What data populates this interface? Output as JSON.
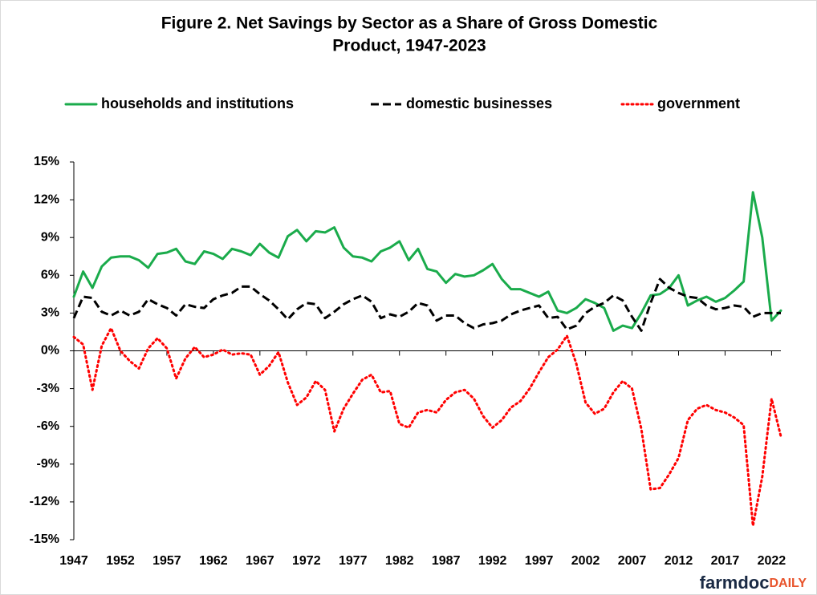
{
  "chart_data": {
    "type": "line",
    "title": [
      "Figure 2. Net Savings by Sector as a Share of Gross Domestic",
      "Product, 1947-2023"
    ],
    "x": [
      1947,
      1948,
      1949,
      1950,
      1951,
      1952,
      1953,
      1954,
      1955,
      1956,
      1957,
      1958,
      1959,
      1960,
      1961,
      1962,
      1963,
      1964,
      1965,
      1966,
      1967,
      1968,
      1969,
      1970,
      1971,
      1972,
      1973,
      1974,
      1975,
      1976,
      1977,
      1978,
      1979,
      1980,
      1981,
      1982,
      1983,
      1984,
      1985,
      1986,
      1987,
      1988,
      1989,
      1990,
      1991,
      1992,
      1993,
      1994,
      1995,
      1996,
      1997,
      1998,
      1999,
      2000,
      2001,
      2002,
      2003,
      2004,
      2005,
      2006,
      2007,
      2008,
      2009,
      2010,
      2011,
      2012,
      2013,
      2014,
      2015,
      2016,
      2017,
      2018,
      2019,
      2020,
      2021,
      2022,
      2023
    ],
    "series": [
      {
        "name": "households and institutions",
        "color": "#1aab4b",
        "dash": "solid",
        "values": [
          4.3,
          6.3,
          5.0,
          6.7,
          7.4,
          7.5,
          7.5,
          7.2,
          6.6,
          7.7,
          7.8,
          8.1,
          7.1,
          6.9,
          7.9,
          7.7,
          7.3,
          8.1,
          7.9,
          7.6,
          8.5,
          7.8,
          7.4,
          9.1,
          9.6,
          8.7,
          9.5,
          9.4,
          9.8,
          8.2,
          7.5,
          7.4,
          7.1,
          7.9,
          8.2,
          8.7,
          7.2,
          8.1,
          6.5,
          6.3,
          5.4,
          6.1,
          5.9,
          6.0,
          6.4,
          6.9,
          5.7,
          4.9,
          4.9,
          4.6,
          4.3,
          4.7,
          3.2,
          3.0,
          3.4,
          4.1,
          3.8,
          3.4,
          1.6,
          2.0,
          1.8,
          3.0,
          4.4,
          4.5,
          5.0,
          6.0,
          3.6,
          4.0,
          4.3,
          3.9,
          4.2,
          4.8,
          5.5,
          12.6,
          9.0,
          2.4,
          3.2
        ]
      },
      {
        "name": "domestic businesses",
        "color": "#000000",
        "dash": "dash",
        "values": [
          2.6,
          4.3,
          4.2,
          3.1,
          2.8,
          3.2,
          2.8,
          3.1,
          4.1,
          3.7,
          3.4,
          2.8,
          3.7,
          3.5,
          3.4,
          4.1,
          4.4,
          4.6,
          5.1,
          5.1,
          4.5,
          4.0,
          3.3,
          2.5,
          3.3,
          3.8,
          3.7,
          2.6,
          3.1,
          3.7,
          4.1,
          4.4,
          3.9,
          2.6,
          2.9,
          2.7,
          3.1,
          3.8,
          3.6,
          2.4,
          2.8,
          2.8,
          2.2,
          1.8,
          2.1,
          2.2,
          2.4,
          2.9,
          3.2,
          3.4,
          3.6,
          2.6,
          2.7,
          1.7,
          2.0,
          3.0,
          3.5,
          3.8,
          4.4,
          4.0,
          2.7,
          1.6,
          3.8,
          5.7,
          5.0,
          4.6,
          4.3,
          4.2,
          3.6,
          3.3,
          3.4,
          3.6,
          3.5,
          2.7,
          3.0,
          3.0,
          3.0
        ]
      },
      {
        "name": "government",
        "color": "#ff0000",
        "dash": "dot",
        "values": [
          1.1,
          0.5,
          -3.1,
          0.4,
          1.8,
          0.0,
          -0.8,
          -1.4,
          0.2,
          1.0,
          0.2,
          -2.2,
          -0.6,
          0.3,
          -0.5,
          -0.3,
          0.1,
          -0.3,
          -0.2,
          -0.3,
          -1.9,
          -1.2,
          -0.1,
          -2.5,
          -4.3,
          -3.7,
          -2.4,
          -3.1,
          -6.4,
          -4.6,
          -3.4,
          -2.3,
          -1.9,
          -3.3,
          -3.2,
          -5.8,
          -6.1,
          -4.9,
          -4.7,
          -4.9,
          -3.9,
          -3.3,
          -3.1,
          -3.8,
          -5.2,
          -6.1,
          -5.5,
          -4.5,
          -4.0,
          -3.0,
          -1.7,
          -0.5,
          0.1,
          1.2,
          -1.0,
          -4.1,
          -5.0,
          -4.6,
          -3.3,
          -2.4,
          -3.0,
          -6.2,
          -11.0,
          -10.9,
          -9.8,
          -8.5,
          -5.5,
          -4.6,
          -4.3,
          -4.7,
          -4.9,
          -5.3,
          -5.9,
          -13.9,
          -10.0,
          -3.8,
          -6.8
        ]
      }
    ],
    "xlim": [
      1947,
      2023
    ],
    "xticks": [
      1947,
      1952,
      1957,
      1962,
      1967,
      1972,
      1977,
      1982,
      1987,
      1992,
      1997,
      2002,
      2007,
      2012,
      2017,
      2022
    ],
    "ylim": [
      -15,
      15
    ],
    "yticks": [
      {
        "value": 15,
        "label": "15%"
      },
      {
        "value": 12,
        "label": "12%"
      },
      {
        "value": 9,
        "label": "9%"
      },
      {
        "value": 6,
        "label": "6%"
      },
      {
        "value": 3,
        "label": "3%"
      },
      {
        "value": 0,
        "label": "0%"
      },
      {
        "value": -3,
        "label": "-3%"
      },
      {
        "value": -6,
        "label": "-6%"
      },
      {
        "value": -9,
        "label": "-9%"
      },
      {
        "value": -12,
        "label": "-12%"
      },
      {
        "value": -15,
        "label": "-15%"
      }
    ],
    "grid": false,
    "legend": "top",
    "logo": [
      "farmdoc",
      "DAILY"
    ]
  }
}
